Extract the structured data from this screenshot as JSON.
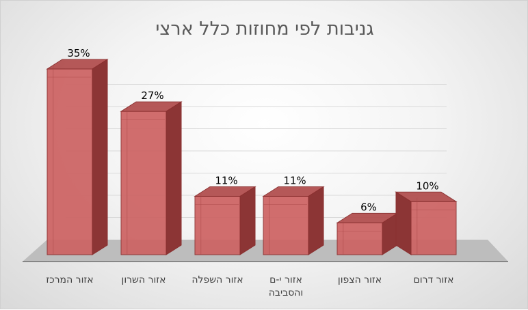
{
  "chart_data": {
    "type": "bar",
    "title": "גניבות לפי מחוזות כלל ארצי",
    "categories": [
      "אזור המרכז",
      "אזור השרון",
      "אזור השפלה",
      "אזור י-ם\nוהסביבה",
      "אזור הצפון",
      "אזור דרום"
    ],
    "values": [
      35,
      27,
      11,
      11,
      6,
      10
    ],
    "value_labels": [
      "35%",
      "27%",
      "11%",
      "11%",
      "6%",
      "10%"
    ],
    "ylim": [
      0,
      35
    ],
    "grid": true,
    "legend": "none",
    "colors": {
      "bar_front": "#cd6262",
      "bar_side": "#8c3535",
      "bar_top": "#b25050",
      "bar_edge": "#8a2f2f"
    }
  }
}
